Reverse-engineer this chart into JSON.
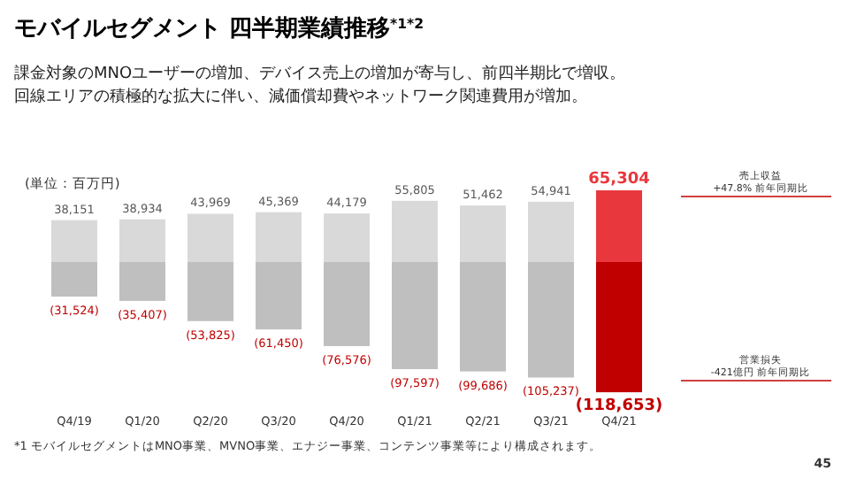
{
  "chart_data": {
    "type": "bar",
    "title": "モバイルセグメント 四半期業績推移$^{*1*2}$",
    "subtitle": "課金対象のMNOユーザーの増加、デバイス売上の増加が寄与し、前四半期比で増収。",
    "stacked": true,
    "categories": [
      "Q4/19",
      "Q1/20",
      "Q2/20",
      "Q3/20",
      "Q4/20",
      "Q1/21",
      "Q2/21",
      "Q3/21",
      "Q4/21"
    ],
    "series": [
      {
        "colors": [
          "#d9d9d9",
          "#d9d9d9",
          "#d9d9d9",
          "#d9d9d9",
          "#d9d9d9",
          "#d9d9d9",
          "#d9d9d9",
          "#d9d9d9",
          "#e8383d"
        ],
        "values": [
          38151,
          38934,
          43969,
          45369,
          44179,
          55805,
          51462,
          54941,
          65304
        ],
        "value_labels": [
          "38,151",
          "38,934",
          "43,969",
          "45,369",
          "44,179",
          "55,805",
          "51,462",
          "54,941",
          "65,304"
        ]
      },
      {
        "colors": [
          "#bfbfbf",
          "#bfbfbf",
          "#bfbfbf",
          "#bfbfbf",
          "#bfbfbf",
          "#bfbfbf",
          "#bfbfbf",
          "#bfbfbf",
          "#c00000"
        ],
        "values": [
          -31524,
          -35407,
          -53825,
          -61450,
          -76576,
          -97597,
          -99686,
          -105237,
          -118653
        ],
        "value_labels": [
          "(31,524)",
          "(35,407)",
          "(53,825)",
          "(61,450)",
          "(76,576)",
          "(97,597)",
          "(99,686)",
          "(105,237)",
          "(118,653)"
        ]
      }
    ],
    "annotations": [
      "回線エリアの積極的な拡大に伴い、減価償却費やネットワーク関連費用が増加。",
      "売上収益\n+47.8% 前年同期比",
      "営業損失\n-421億円 前年同期比",
      "(単位：百万円)",
      "*1 モバイルセグメントはMNO事業、MVNO事業、エナジー事業、コンテンツ事業等により構成されます。",
      "45"
    ]
  }
}
